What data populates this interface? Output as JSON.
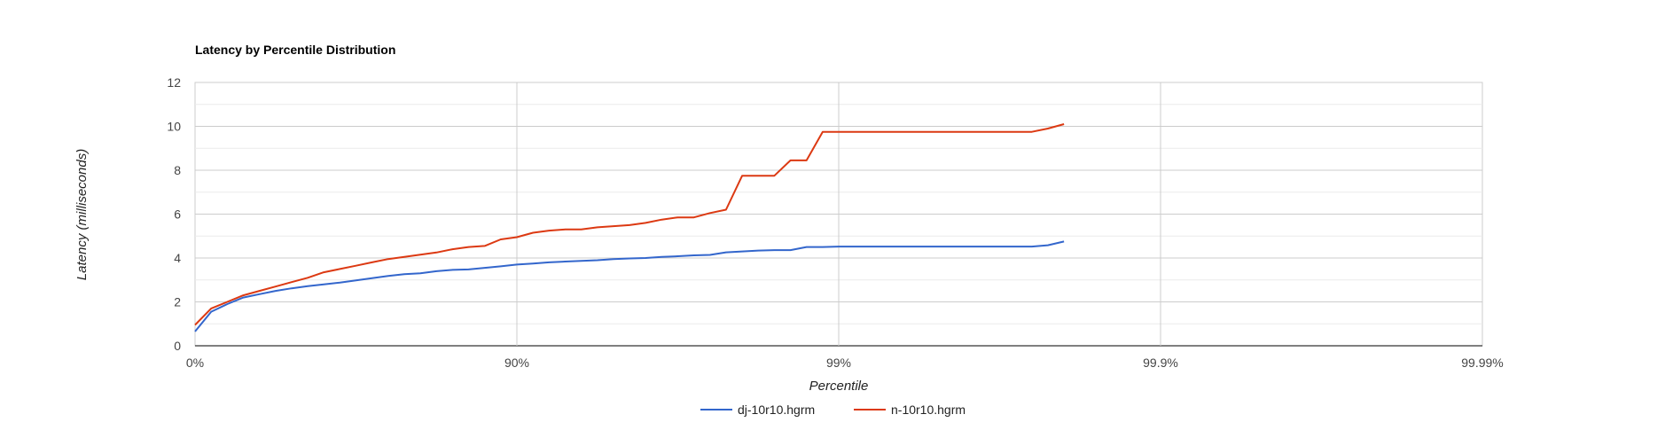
{
  "chart_data": {
    "type": "line",
    "title": "Latency by Percentile Distribution",
    "xlabel": "Percentile",
    "ylabel": "Latency (milliseconds)",
    "x_scale": "log-percentile",
    "x_tick_labels": [
      "0%",
      "90%",
      "99%",
      "99.9%",
      "99.99%"
    ],
    "xlim": [
      "0%",
      "99.99%"
    ],
    "y_ticks": [
      0,
      2,
      4,
      6,
      8,
      10,
      12
    ],
    "ylim": [
      0,
      12
    ],
    "grid": true,
    "legend_position": "bottom",
    "series": [
      {
        "name": "dj-10r10.hgrm",
        "color": "#3366cc",
        "x": [
          0,
          0.05,
          0.1,
          0.15,
          0.2,
          0.25,
          0.3,
          0.35,
          0.4,
          0.45,
          0.5,
          0.55,
          0.6,
          0.65,
          0.7,
          0.75,
          0.8,
          0.85,
          0.9,
          0.95,
          1.0,
          1.05,
          1.1,
          1.15,
          1.2,
          1.25,
          1.3,
          1.35,
          1.4,
          1.45,
          1.5,
          1.55,
          1.6,
          1.65,
          1.7,
          1.75,
          1.8,
          1.85,
          1.9,
          1.95,
          2.0,
          2.05,
          2.1,
          2.15,
          2.2,
          2.25,
          2.3,
          2.35,
          2.4,
          2.45,
          2.5,
          2.55,
          2.6,
          2.65,
          2.7
        ],
        "y": [
          0.65,
          1.55,
          1.9,
          2.2,
          2.35,
          2.5,
          2.62,
          2.72,
          2.8,
          2.88,
          2.98,
          3.08,
          3.18,
          3.26,
          3.3,
          3.4,
          3.46,
          3.48,
          3.55,
          3.62,
          3.7,
          3.75,
          3.8,
          3.84,
          3.87,
          3.9,
          3.95,
          3.98,
          4.0,
          4.05,
          4.08,
          4.12,
          4.14,
          4.26,
          4.3,
          4.34,
          4.36,
          4.36,
          4.5,
          4.5,
          4.52,
          4.52,
          4.52,
          4.52,
          4.52,
          4.52,
          4.52,
          4.52,
          4.52,
          4.52,
          4.52,
          4.52,
          4.52,
          4.58,
          4.75
        ]
      },
      {
        "name": "n-10r10.hgrm",
        "color": "#dc3912",
        "x": [
          0,
          0.05,
          0.1,
          0.15,
          0.2,
          0.25,
          0.3,
          0.35,
          0.4,
          0.45,
          0.5,
          0.55,
          0.6,
          0.65,
          0.7,
          0.75,
          0.8,
          0.85,
          0.9,
          0.95,
          1.0,
          1.05,
          1.1,
          1.15,
          1.2,
          1.25,
          1.3,
          1.35,
          1.4,
          1.45,
          1.5,
          1.55,
          1.6,
          1.65,
          1.7,
          1.75,
          1.8,
          1.85,
          1.9,
          1.95,
          2.0,
          2.05,
          2.1,
          2.15,
          2.2,
          2.25,
          2.3,
          2.35,
          2.4,
          2.45,
          2.5,
          2.55,
          2.6,
          2.65,
          2.7
        ],
        "y": [
          0.95,
          1.7,
          2.0,
          2.3,
          2.5,
          2.7,
          2.9,
          3.1,
          3.35,
          3.5,
          3.65,
          3.8,
          3.95,
          4.05,
          4.15,
          4.25,
          4.4,
          4.5,
          4.55,
          4.85,
          4.95,
          5.15,
          5.25,
          5.3,
          5.3,
          5.4,
          5.45,
          5.5,
          5.6,
          5.75,
          5.85,
          5.85,
          6.05,
          6.2,
          7.75,
          7.75,
          7.75,
          8.45,
          8.45,
          9.75,
          9.75,
          9.75,
          9.75,
          9.75,
          9.75,
          9.75,
          9.75,
          9.75,
          9.75,
          9.75,
          9.75,
          9.75,
          9.75,
          9.9,
          10.1
        ]
      }
    ]
  }
}
